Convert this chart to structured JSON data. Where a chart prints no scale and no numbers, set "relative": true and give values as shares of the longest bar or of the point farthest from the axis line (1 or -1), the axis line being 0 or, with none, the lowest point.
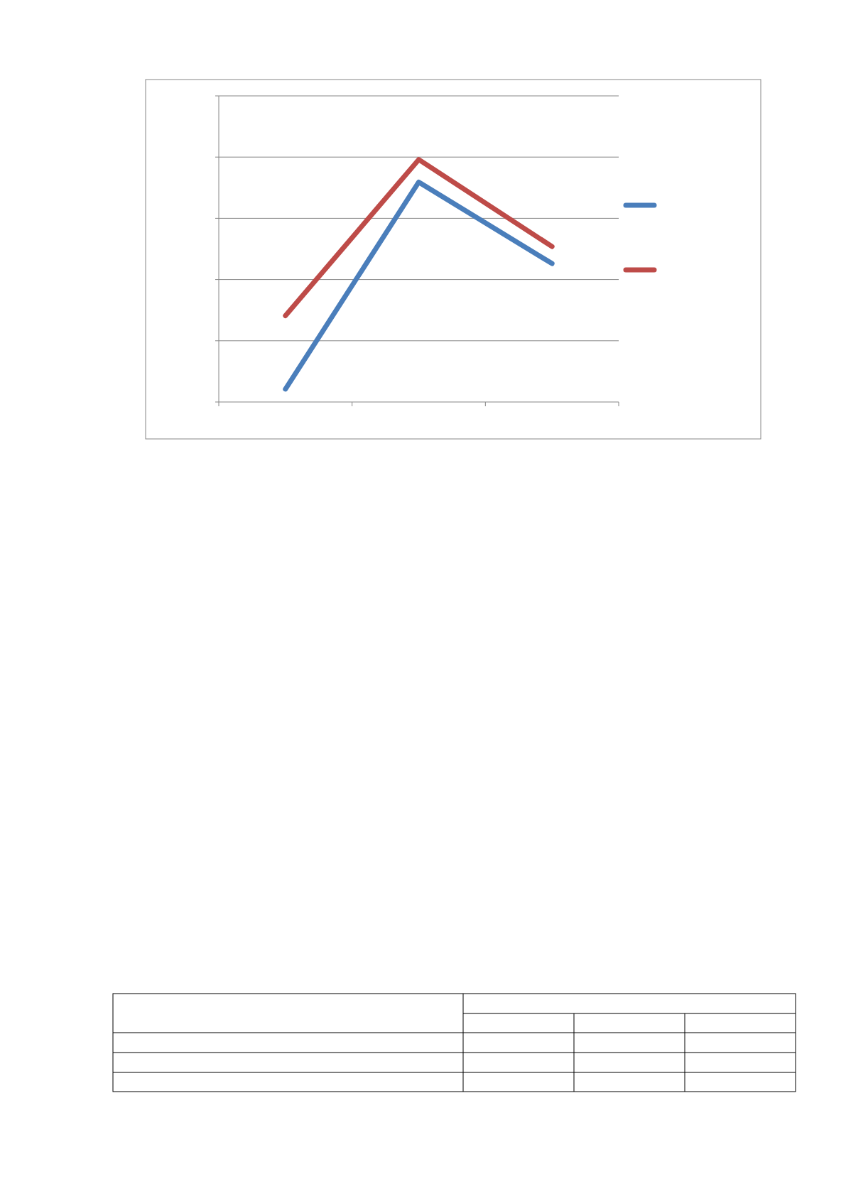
{
  "chart_data": {
    "type": "line",
    "relative": true,
    "categories": [
      null,
      null,
      null
    ],
    "grid": "y",
    "series": [
      {
        "color": "#4a7ebb",
        "values": [
          0.053,
          0.907,
          0.571
        ]
      },
      {
        "color": "#be4b48",
        "values": [
          0.356,
          1,
          0.641
        ]
      }
    ]
  }
}
